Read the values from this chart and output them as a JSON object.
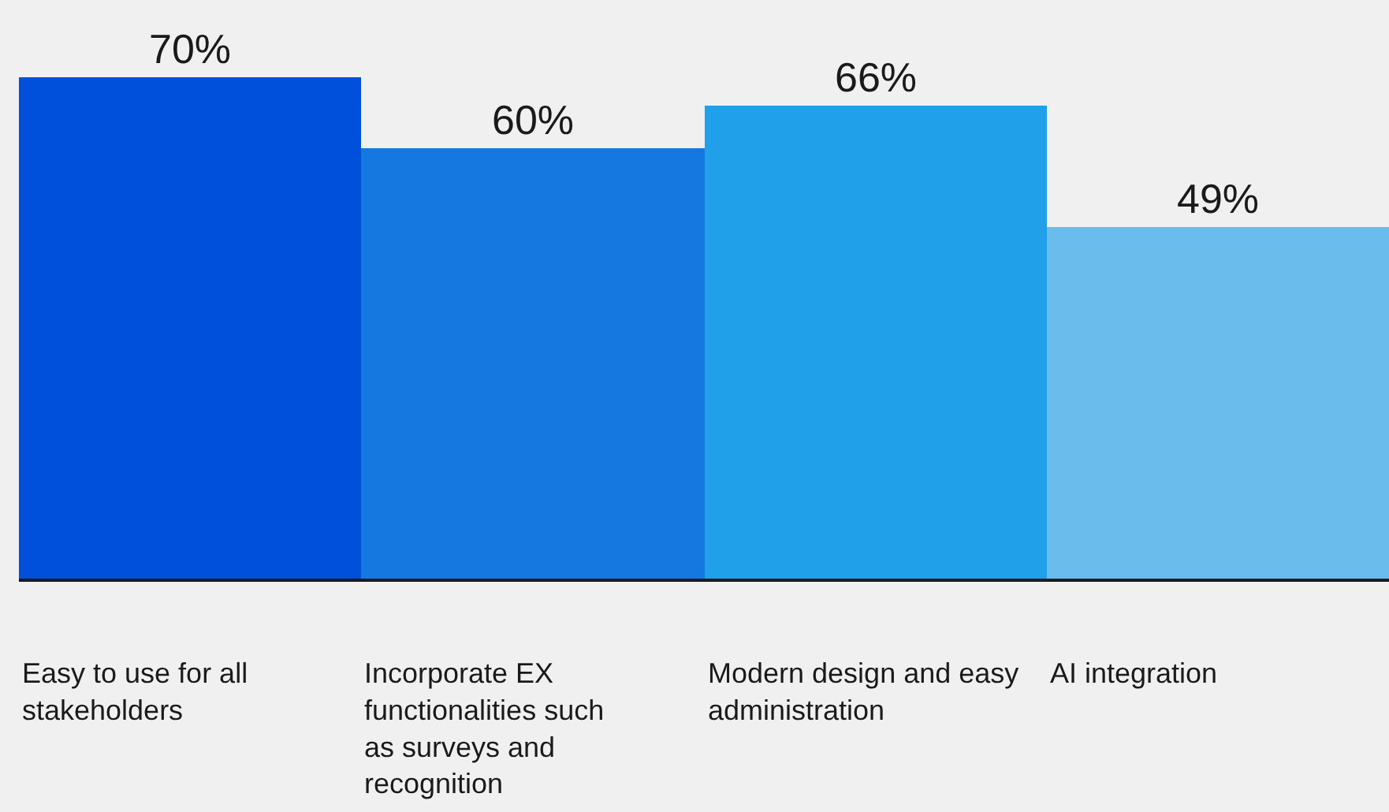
{
  "chart_data": {
    "type": "bar",
    "categories": [
      "Easy to use for all stakeholders",
      "Incorporate EX functionalities such as surveys and recognition",
      "Modern design and easy administration",
      "AI integration"
    ],
    "values": [
      70,
      60,
      66,
      49
    ],
    "colors": [
      "#0050dc",
      "#1478e0",
      "#20a0e8",
      "#6abcec"
    ],
    "value_labels": [
      "70%",
      "60%",
      "66%",
      "49%"
    ],
    "grid": false,
    "legend": false
  }
}
